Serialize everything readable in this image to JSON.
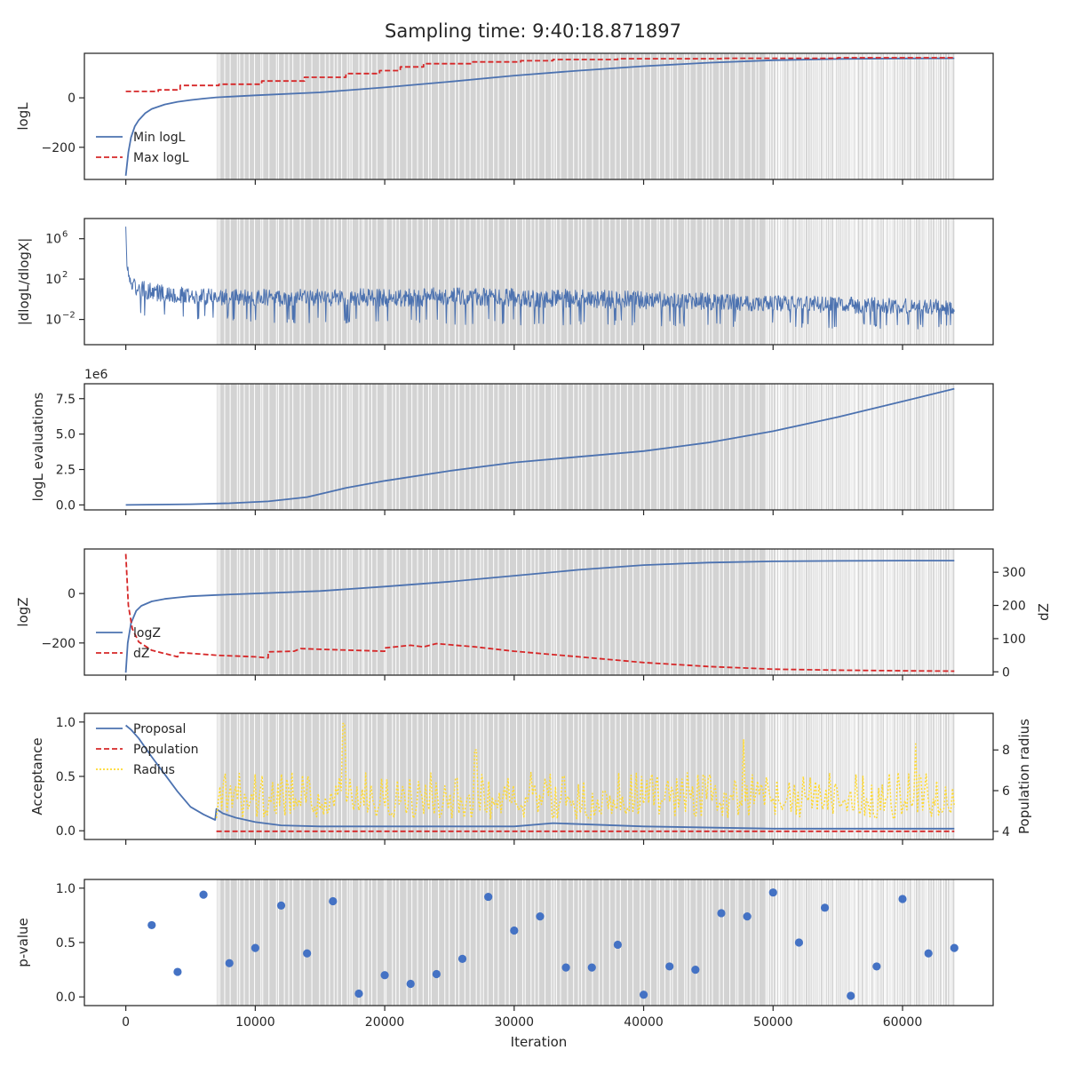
{
  "figure": {
    "title": "Sampling time: 9:40:18.871897"
  },
  "colors": {
    "blue": "#4c72b0",
    "red": "#d62728",
    "yellow": "#ffd92f",
    "shade": "#d3d3d3",
    "scatter": "#4472c4"
  },
  "chart_data": [
    {
      "type": "line",
      "panel": "logL",
      "ylabel": "logL",
      "xlim": [
        -3200,
        67000
      ],
      "ylim": [
        -330,
        180
      ],
      "yticks": [
        {
          "v": -200,
          "t": "−200"
        },
        {
          "v": 0,
          "t": "0"
        }
      ],
      "legend": "lower-left",
      "series": [
        {
          "name": "Min logL",
          "style": "solid",
          "x": [
            0,
            200,
            400,
            700,
            1000,
            1500,
            2000,
            3000,
            4000,
            5000,
            6000,
            7000,
            10000,
            15000,
            20000,
            25000,
            30000,
            35000,
            40000,
            45000,
            50000,
            55000,
            60000,
            64000
          ],
          "y": [
            -315,
            -220,
            -160,
            -115,
            -90,
            -62,
            -45,
            -27,
            -16,
            -9,
            -3,
            2,
            10,
            22,
            42,
            65,
            90,
            110,
            128,
            142,
            152,
            157,
            159,
            160
          ]
        },
        {
          "name": "Max logL",
          "style": "dashed",
          "x": [
            0,
            2500,
            2500,
            4200,
            4200,
            7200,
            7200,
            10500,
            10500,
            13800,
            13800,
            17000,
            17000,
            19600,
            19600,
            21200,
            21200,
            23000,
            23000,
            26800,
            26800,
            30500,
            30500,
            33000,
            33000,
            38000,
            38000,
            46000,
            46000,
            55000,
            55000,
            64000
          ],
          "y": [
            26,
            26,
            32,
            32,
            50,
            50,
            55,
            55,
            68,
            68,
            83,
            83,
            98,
            98,
            110,
            110,
            125,
            125,
            138,
            138,
            145,
            145,
            150,
            150,
            155,
            155,
            158,
            158,
            160,
            160,
            162,
            162
          ]
        }
      ]
    },
    {
      "type": "line",
      "panel": "dlogL/dlogX",
      "ylabel": "|dlogL/dlogX|",
      "yscale": "log",
      "xlim": [
        -3200,
        67000
      ],
      "ylim_log10": [
        -4.5,
        8.0
      ],
      "yticks": [
        {
          "e": 6
        },
        {
          "e": 2
        },
        {
          "e": -2
        }
      ],
      "series": [
        {
          "name": "",
          "style": "noisy-solid",
          "x": [
            0,
            50,
            150,
            300,
            600,
            1000,
            2000,
            4000,
            7000,
            15000,
            25000,
            35000,
            45000,
            55000,
            64000
          ],
          "y_log10_upper": [
            7.2,
            4.8,
            4.0,
            3.1,
            2.7,
            2.4,
            2.1,
            1.8,
            1.5,
            1.5,
            1.7,
            1.5,
            1.1,
            0.7,
            0.4
          ],
          "y_log10_lower": [
            5.0,
            2.5,
            1.0,
            -0.5,
            -1.2,
            -1.5,
            -1.8,
            -2.0,
            -2.2,
            -2.4,
            -2.5,
            -2.6,
            -2.7,
            -2.9,
            -3.0
          ]
        }
      ]
    },
    {
      "type": "line",
      "panel": "logL evaluations",
      "ylabel": "logL evaluations",
      "offset_text": "1e6",
      "xlim": [
        -3200,
        67000
      ],
      "ylim": [
        -0.35,
        8.55
      ],
      "yticks": [
        {
          "v": 0,
          "t": "0.0"
        },
        {
          "v": 2.5,
          "t": "2.5"
        },
        {
          "v": 5.0,
          "t": "5.0"
        },
        {
          "v": 7.5,
          "t": "7.5"
        }
      ],
      "series": [
        {
          "name": "",
          "style": "solid",
          "x": [
            0,
            5000,
            8000,
            11000,
            14000,
            17000,
            20000,
            25000,
            30000,
            35000,
            40000,
            45000,
            50000,
            55000,
            60000,
            64000
          ],
          "y": [
            0.0,
            0.05,
            0.12,
            0.25,
            0.55,
            1.2,
            1.7,
            2.4,
            3.0,
            3.4,
            3.8,
            4.4,
            5.2,
            6.2,
            7.3,
            8.2
          ]
        }
      ]
    },
    {
      "type": "line",
      "panel": "logZ",
      "ylabel": "logZ",
      "y2label": "dZ",
      "xlim": [
        -3200,
        67000
      ],
      "ylim": [
        -330,
        180
      ],
      "y2lim": [
        -10,
        370
      ],
      "yticks": [
        {
          "v": -200,
          "t": "−200"
        },
        {
          "v": 0,
          "t": "0"
        }
      ],
      "y2ticks": [
        {
          "v": 0,
          "t": "0"
        },
        {
          "v": 100,
          "t": "100"
        },
        {
          "v": 200,
          "t": "200"
        },
        {
          "v": 300,
          "t": "300"
        }
      ],
      "legend": "lower-left",
      "series": [
        {
          "name": "logZ",
          "axis": "left",
          "style": "solid",
          "x": [
            0,
            150,
            400,
            800,
            1200,
            2000,
            3000,
            4000,
            5000,
            7000,
            10000,
            15000,
            20000,
            25000,
            30000,
            35000,
            40000,
            45000,
            50000,
            55000,
            60000,
            64000
          ],
          "y": [
            -320,
            -200,
            -120,
            -70,
            -50,
            -32,
            -22,
            -16,
            -11,
            -6,
            0,
            10,
            28,
            48,
            72,
            96,
            115,
            125,
            130,
            132,
            133,
            133
          ]
        },
        {
          "name": "dZ",
          "axis": "right",
          "style": "dashed",
          "x": [
            0,
            200,
            500,
            1000,
            2000,
            3000,
            4000,
            4200,
            7000,
            10000,
            11000,
            11000,
            13000,
            13500,
            15000,
            20000,
            20000,
            22000,
            23000,
            24000,
            25500,
            27000,
            30000,
            35000,
            40000,
            45000,
            50000,
            55000,
            60000,
            64000
          ],
          "y": [
            355,
            200,
            130,
            90,
            65,
            55,
            45,
            58,
            50,
            45,
            42,
            60,
            62,
            70,
            68,
            62,
            72,
            80,
            75,
            85,
            80,
            75,
            62,
            45,
            28,
            16,
            8,
            5,
            3,
            2
          ]
        }
      ]
    },
    {
      "type": "line",
      "panel": "Acceptance",
      "ylabel": "Acceptance",
      "y2label": "Population radius",
      "xlim": [
        -3200,
        67000
      ],
      "ylim": [
        -0.08,
        1.08
      ],
      "y2lim": [
        3.6,
        9.8
      ],
      "yticks": [
        {
          "v": 0,
          "t": "0.0"
        },
        {
          "v": 0.5,
          "t": "0.5"
        },
        {
          "v": 1.0,
          "t": "1.0"
        }
      ],
      "y2ticks": [
        {
          "v": 4,
          "t": "4"
        },
        {
          "v": 6,
          "t": "6"
        },
        {
          "v": 8,
          "t": "8"
        }
      ],
      "legend": "upper-left",
      "series": [
        {
          "name": "Proposal",
          "axis": "left",
          "style": "solid",
          "x": [
            0,
            400,
            1000,
            2000,
            3000,
            4000,
            5000,
            6000,
            6900,
            7000,
            7500,
            8500,
            10000,
            12000,
            15000,
            20000,
            30000,
            33000,
            40000,
            50000,
            60000,
            64000
          ],
          "y": [
            0.97,
            0.93,
            0.85,
            0.68,
            0.52,
            0.36,
            0.22,
            0.15,
            0.1,
            0.2,
            0.16,
            0.12,
            0.08,
            0.05,
            0.04,
            0.04,
            0.04,
            0.07,
            0.04,
            0.02,
            0.02,
            0.02
          ]
        },
        {
          "name": "Population",
          "axis": "left",
          "style": "dashed",
          "x": [
            7000,
            64000
          ],
          "y": [
            -0.005,
            -0.005
          ]
        },
        {
          "name": "Radius",
          "axis": "right",
          "style": "dotted",
          "x": [
            7000,
            16700,
            16800,
            27000,
            33800,
            47700,
            61000,
            64000
          ],
          "y": [
            4.8,
            6.0,
            9.3,
            8.0,
            6.7,
            8.5,
            8.3,
            5.2
          ]
        }
      ]
    },
    {
      "type": "scatter",
      "panel": "p-value",
      "ylabel": "p-value",
      "xlabel": "Iteration",
      "xlim": [
        -3200,
        67000
      ],
      "ylim": [
        -0.08,
        1.08
      ],
      "yticks": [
        {
          "v": 0,
          "t": "0.0"
        },
        {
          "v": 0.5,
          "t": "0.5"
        },
        {
          "v": 1.0,
          "t": "1.0"
        }
      ],
      "xticks": [
        {
          "v": 0,
          "t": "0"
        },
        {
          "v": 10000,
          "t": "10000"
        },
        {
          "v": 20000,
          "t": "20000"
        },
        {
          "v": 30000,
          "t": "30000"
        },
        {
          "v": 40000,
          "t": "40000"
        },
        {
          "v": 50000,
          "t": "50000"
        },
        {
          "v": 60000,
          "t": "60000"
        }
      ],
      "x": [
        2000,
        4000,
        6000,
        8000,
        10000,
        12000,
        14000,
        16000,
        18000,
        20000,
        22000,
        24000,
        26000,
        28000,
        30000,
        32000,
        34000,
        36000,
        38000,
        40000,
        42000,
        44000,
        46000,
        48000,
        50000,
        52000,
        54000,
        56000,
        58000,
        60000,
        62000,
        64000
      ],
      "y": [
        0.66,
        0.23,
        0.94,
        0.31,
        0.45,
        0.84,
        0.4,
        0.88,
        0.03,
        0.2,
        0.12,
        0.21,
        0.35,
        0.92,
        0.61,
        0.74,
        0.27,
        0.27,
        0.48,
        0.02,
        0.28,
        0.25,
        0.77,
        0.74,
        0.96,
        0.5,
        0.82,
        0.01,
        0.28,
        0.9,
        0.4,
        0.45
      ]
    }
  ],
  "shading": {
    "region_start": 7000,
    "region_end": 64000,
    "dense_start": 49000,
    "first_line": 7000
  }
}
